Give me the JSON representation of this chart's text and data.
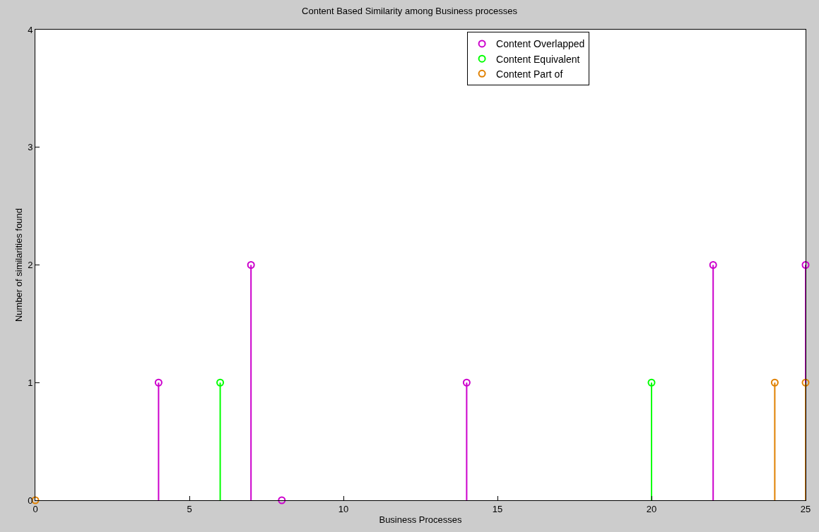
{
  "chart_data": {
    "type": "lollipop",
    "title": "Content Based Similarity among Business processes",
    "xlabel": "Business Processes",
    "ylabel": "Number of similarities found",
    "series": [
      {
        "name": "Content Overlapped",
        "color": "#cc00cc",
        "x": [
          4,
          7,
          8,
          14,
          22,
          25
        ],
        "values": [
          1,
          2,
          0,
          1,
          2,
          2
        ]
      },
      {
        "name": "Content Equivalent",
        "color": "#00ff00",
        "x": [
          6,
          20
        ],
        "values": [
          1,
          1
        ]
      },
      {
        "name": "Content Part of",
        "color": "#e08000",
        "x": [
          0,
          24,
          25
        ],
        "values": [
          0,
          1,
          1
        ]
      }
    ],
    "xlim": [
      0,
      25
    ],
    "xticks": [
      0,
      5,
      10,
      15,
      20,
      25
    ],
    "ylim": [
      0,
      4
    ],
    "yticks": [
      0,
      1,
      2,
      3,
      4
    ],
    "legend": "top",
    "marker": "circle"
  }
}
